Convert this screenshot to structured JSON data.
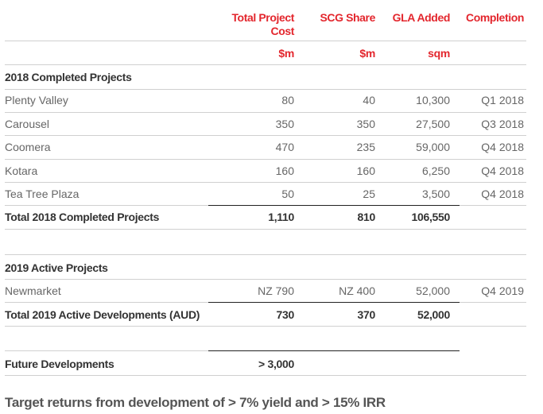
{
  "columns": {
    "project_cost": "Total Project Cost",
    "scg_share": "SCG Share",
    "gla_added": "GLA Added",
    "completion": "Completion"
  },
  "units": {
    "project_cost": "$m",
    "scg_share": "$m",
    "gla_added": "sqm"
  },
  "completed": {
    "heading": "2018 Completed Projects",
    "rows": [
      {
        "name": "Plenty Valley",
        "cost": "80",
        "share": "40",
        "gla": "10,300",
        "completion": "Q1 2018"
      },
      {
        "name": "Carousel",
        "cost": "350",
        "share": "350",
        "gla": "27,500",
        "completion": "Q3 2018"
      },
      {
        "name": "Coomera",
        "cost": "470",
        "share": "235",
        "gla": "59,000",
        "completion": "Q4 2018"
      },
      {
        "name": "Kotara",
        "cost": "160",
        "share": "160",
        "gla": "6,250",
        "completion": "Q4 2018"
      },
      {
        "name": "Tea Tree Plaza",
        "cost": "50",
        "share": "25",
        "gla": "3,500",
        "completion": "Q4 2018"
      }
    ],
    "total": {
      "name": "Total 2018 Completed Projects",
      "cost": "1,110",
      "share": "810",
      "gla": "106,550"
    }
  },
  "active": {
    "heading": "2019 Active Projects",
    "rows": [
      {
        "name": "Newmarket",
        "cost": "NZ 790",
        "share": "NZ 400",
        "gla": "52,000",
        "completion": "Q4 2019"
      }
    ],
    "total": {
      "name": "Total 2019 Active Developments (AUD)",
      "cost": "730",
      "share": "370",
      "gla": "52,000"
    }
  },
  "future": {
    "name": "Future Developments",
    "cost": "> 3,000"
  },
  "footer": "Target returns from development of > 7% yield and > 15% IRR",
  "colors": {
    "accent": "#e3262d",
    "text": "#666666",
    "rule": "#d0d0d0"
  }
}
